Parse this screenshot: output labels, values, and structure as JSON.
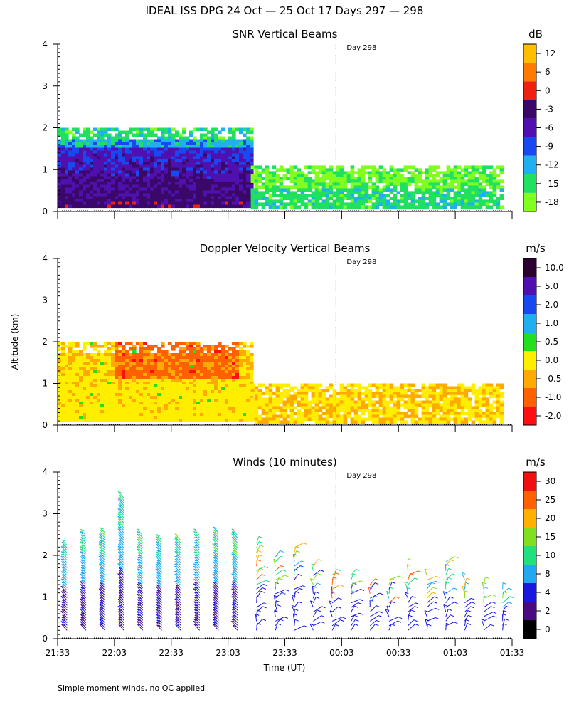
{
  "main_title": "IDEAL ISS DPG  24 Oct — 25 Oct 17 Days 297 — 298",
  "ylabel": "Altitude (km)",
  "xlabel": "Time (UT)",
  "footnote": "Simple moment winds, no QC applied",
  "day_marker_label": "Day 298",
  "chart_data": [
    {
      "type": "heatmap",
      "title": "SNR Vertical Beams",
      "units": "dB",
      "ylim": [
        0,
        4
      ],
      "yticks": [
        "0",
        "1",
        "2",
        "3",
        "4"
      ],
      "xlim_minutes": [
        0,
        240
      ],
      "colorbar": {
        "labels": [
          "-18",
          "-15",
          "-12",
          "-9",
          "-6",
          "-3",
          "0",
          "6",
          "12"
        ],
        "colors": [
          "#80ff20",
          "#20e060",
          "#20b0f0",
          "#1848f0",
          "#5010b0",
          "#3a0868",
          "#f02010",
          "#ff7a00",
          "#ffbe00"
        ]
      },
      "day_marker_minutes": 147,
      "regions": [
        {
          "x": [
            0,
            102
          ],
          "y": [
            0.1,
            2.0
          ],
          "dominant_db": "-12 to -6"
        },
        {
          "x": [
            102,
            235
          ],
          "y": [
            0.1,
            1.1
          ],
          "dominant_db": "-18 to -12"
        }
      ]
    },
    {
      "type": "heatmap",
      "title": "Doppler Velocity Vertical Beams",
      "units": "m/s",
      "ylim": [
        0,
        4
      ],
      "yticks": [
        "0",
        "1",
        "2",
        "3",
        "4"
      ],
      "xlim_minutes": [
        0,
        240
      ],
      "colorbar": {
        "labels": [
          "-2.0",
          "-1.0",
          "-0.5",
          "0.0",
          "0.5",
          "1.0",
          "2.0",
          "5.0",
          "10.0"
        ],
        "colors": [
          "#ff1010",
          "#ff6000",
          "#ffaa00",
          "#ffee00",
          "#20e020",
          "#20b0f0",
          "#1848f0",
          "#5010b0",
          "#2a0030"
        ]
      },
      "day_marker_minutes": 147,
      "regions": [
        {
          "x": [
            0,
            102
          ],
          "y": [
            0.1,
            2.0
          ],
          "dominant_ms": "-1.0 to 0.0"
        },
        {
          "x": [
            102,
            235
          ],
          "y": [
            0.1,
            1.0
          ],
          "dominant_ms": "-0.5 to 0.0"
        }
      ]
    },
    {
      "type": "scatter",
      "subtype": "wind_barbs",
      "title": "Winds (10 minutes)",
      "units": "m/s",
      "ylim": [
        0,
        4
      ],
      "yticks": [
        "0",
        "1",
        "2",
        "3",
        "4"
      ],
      "xlim_minutes": [
        0,
        240
      ],
      "xticks": [
        "21:33",
        "22:03",
        "22:33",
        "23:03",
        "23:33",
        "00:03",
        "00:33",
        "01:03",
        "01:33"
      ],
      "colorbar": {
        "labels": [
          "0",
          "2",
          "4",
          "8",
          "10",
          "15",
          "20",
          "25",
          "30"
        ],
        "colors": [
          "#000000",
          "#4a0a80",
          "#1818e0",
          "#20a8f0",
          "#20e080",
          "#80e020",
          "#ffb000",
          "#ff6000",
          "#f01010"
        ]
      },
      "day_marker_minutes": 147,
      "profile_times_minutes": [
        5,
        15,
        25,
        35,
        45,
        55,
        65,
        75,
        85,
        95,
        105,
        115,
        125,
        135,
        145,
        155,
        165,
        175,
        185,
        195,
        205,
        215,
        225,
        235
      ],
      "profile_top_km": [
        2.3,
        2.5,
        2.6,
        3.4,
        2.5,
        2.4,
        2.4,
        2.5,
        2.6,
        2.5,
        2.4,
        2.0,
        2.2,
        1.8,
        1.6,
        1.6,
        1.4,
        1.5,
        1.8,
        1.6,
        1.9,
        1.5,
        1.4,
        1.3
      ]
    }
  ]
}
